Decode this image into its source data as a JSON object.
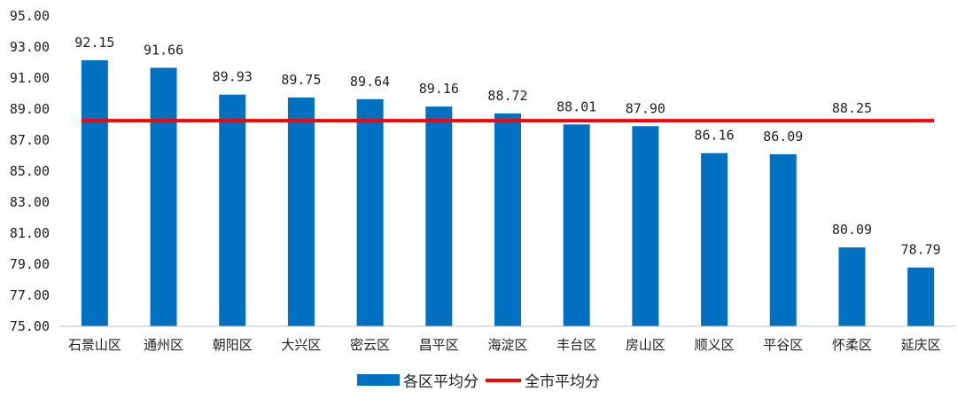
{
  "chart_data": {
    "type": "bar",
    "categories": [
      "石景山区",
      "通州区",
      "朝阳区",
      "大兴区",
      "密云区",
      "昌平区",
      "海淀区",
      "丰台区",
      "房山区",
      "顺义区",
      "平谷区",
      "怀柔区",
      "延庆区"
    ],
    "series": [
      {
        "name": "各区平均分",
        "type": "bar",
        "color": "#0070C0",
        "values": [
          92.15,
          91.66,
          89.93,
          89.75,
          89.64,
          89.16,
          88.72,
          88.01,
          87.9,
          86.16,
          86.09,
          80.09,
          78.79
        ],
        "value_labels": [
          "92.15",
          "91.66",
          "89.93",
          "89.75",
          "89.64",
          "89.16",
          "88.72",
          "88.01",
          "87.90",
          "86.16",
          "86.09",
          "80.09",
          "78.79"
        ]
      },
      {
        "name": "全市平均分",
        "type": "line",
        "color": "#FF0000",
        "value": 88.25,
        "value_label": "88.25"
      }
    ],
    "ylim": [
      75,
      95
    ],
    "yticks": [
      "75.00",
      "77.00",
      "79.00",
      "81.00",
      "83.00",
      "85.00",
      "87.00",
      "89.00",
      "91.00",
      "93.00",
      "95.00"
    ],
    "grid": false,
    "legend": "bottom"
  }
}
